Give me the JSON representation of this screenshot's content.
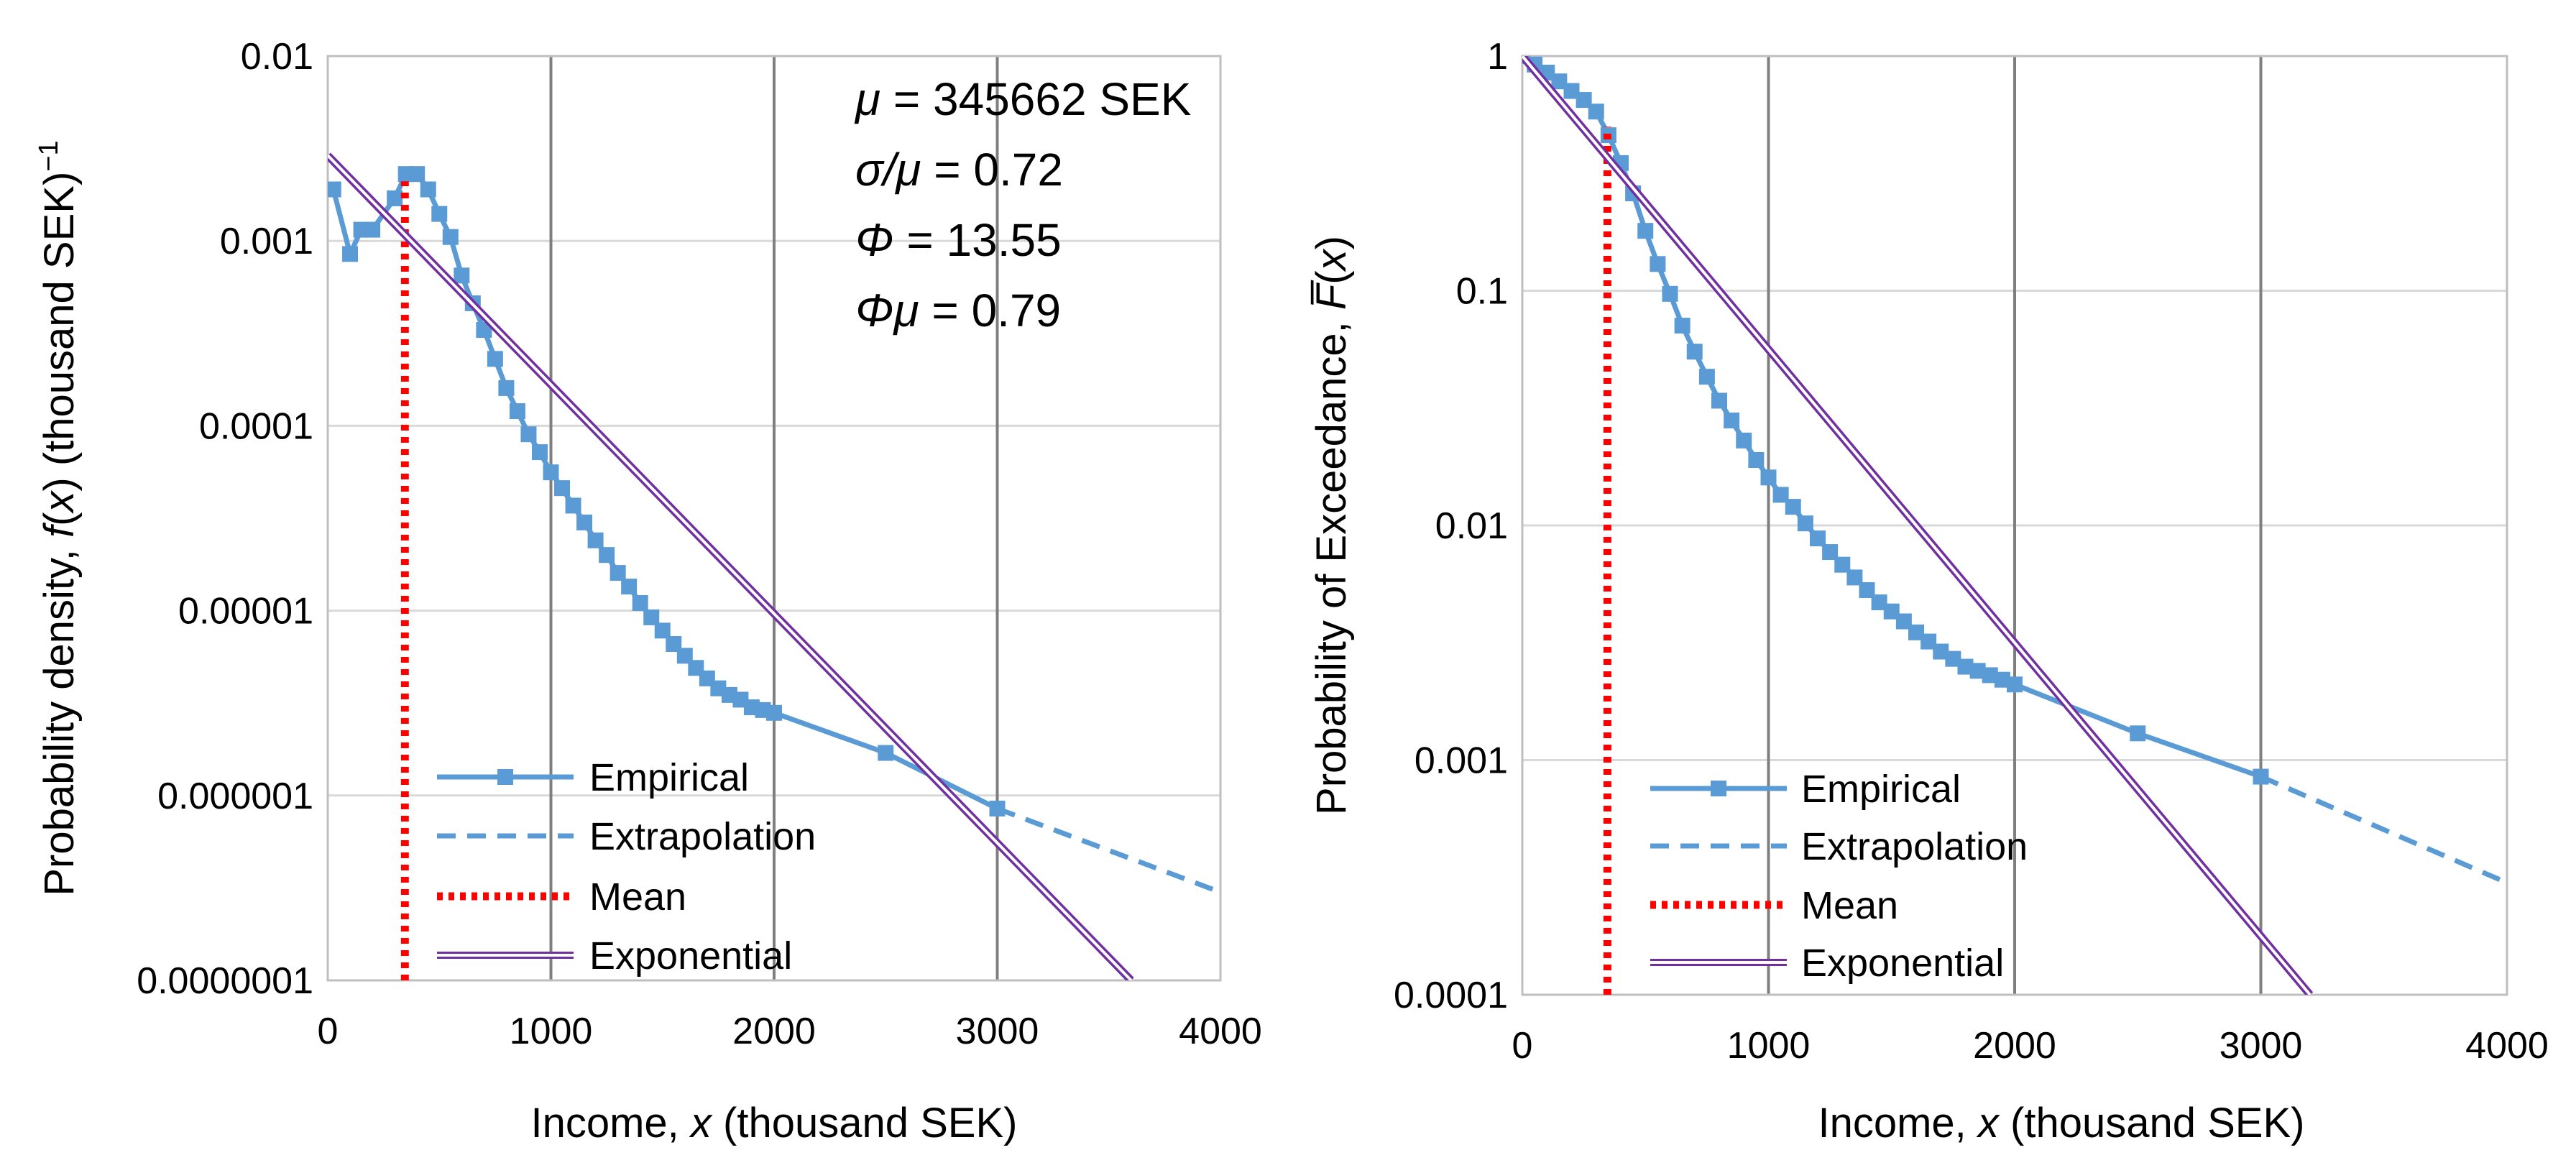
{
  "colors": {
    "empirical": "#5b9bd5",
    "mean": "#ff0000",
    "exponential": "#7030a0",
    "grid_major": "#7f7f7f",
    "grid_minor": "#d9d9d9",
    "axis": "#bfbfbf"
  },
  "chart_data": [
    {
      "id": "density",
      "type": "line",
      "yscale": "log",
      "xlim": [
        0,
        4000
      ],
      "ylim": [
        1e-07,
        0.01
      ],
      "x_ticks": [
        0,
        1000,
        2000,
        3000,
        4000
      ],
      "x_tick_labels": [
        "0",
        "1000",
        "2000",
        "3000",
        "4000"
      ],
      "y_ticks": [
        0.01,
        0.001,
        0.0001,
        1e-05,
        1e-06,
        1e-07
      ],
      "y_tick_labels": [
        "0.01",
        "0.001",
        "0.0001",
        "0.00001",
        "0.000001",
        "0.0000001"
      ],
      "xlabel": {
        "prefix": "Income, ",
        "var": "x",
        "suffix": " (thousand SEK)"
      },
      "ylabel": {
        "prefix": "Probability density, ",
        "func": "f",
        "open": "(",
        "var": "x",
        "close": ")",
        "suffix": " (thousand SEK)",
        "sup": "−1"
      },
      "annotations": [
        {
          "sym": "μ",
          "text": " = 345662 SEK"
        },
        {
          "sym": "σ/μ",
          "text": " = 0.72"
        },
        {
          "sym": "Φ",
          "text": " = 13.55"
        },
        {
          "sym": "Φμ",
          "text": " = 0.79"
        }
      ],
      "legend": [
        "Empirical",
        "Extrapolation",
        "Mean",
        "Exponential"
      ],
      "legend_position": "bottom-left",
      "series": [
        {
          "name": "Empirical",
          "style": "solid-square-markers",
          "x": [
            25,
            100,
            150,
            200,
            300,
            350,
            400,
            450,
            500,
            550,
            600,
            650,
            700,
            750,
            800,
            850,
            900,
            950,
            1000,
            1050,
            1100,
            1150,
            1200,
            1250,
            1300,
            1350,
            1400,
            1450,
            1500,
            1550,
            1600,
            1650,
            1700,
            1750,
            1800,
            1850,
            1900,
            1950,
            2000,
            2500,
            3000
          ],
          "y": [
            0.0019,
            0.00085,
            0.00115,
            0.00115,
            0.0017,
            0.0023,
            0.0023,
            0.0019,
            0.0014,
            0.00105,
            0.00065,
            0.00046,
            0.00033,
            0.00023,
            0.00016,
            0.00012,
            9e-05,
            7.2e-05,
            5.6e-05,
            4.6e-05,
            3.7e-05,
            3e-05,
            2.4e-05,
            2e-05,
            1.6e-05,
            1.35e-05,
            1.1e-05,
            9.2e-06,
            7.8e-06,
            6.6e-06,
            5.7e-06,
            4.9e-06,
            4.3e-06,
            3.8e-06,
            3.5e-06,
            3.3e-06,
            3e-06,
            2.9e-06,
            2.8e-06,
            1.7e-06,
            8.5e-07
          ]
        },
        {
          "name": "Extrapolation",
          "style": "dashed",
          "x": [
            3000,
            4000
          ],
          "y": [
            8.5e-07,
            3e-07
          ]
        },
        {
          "name": "Mean",
          "style": "dotted-vertical",
          "x": [
            345.662,
            345.662
          ],
          "y": [
            1e-07,
            0.0021
          ]
        },
        {
          "name": "Exponential",
          "style": "double-line",
          "x": [
            0,
            3600
          ],
          "y": [
            0.0029,
            1e-07
          ]
        }
      ]
    },
    {
      "id": "exceedance",
      "type": "line",
      "yscale": "log",
      "xlim": [
        0,
        4000
      ],
      "ylim": [
        0.0001,
        1
      ],
      "x_ticks": [
        0,
        1000,
        2000,
        3000,
        4000
      ],
      "x_tick_labels": [
        "0",
        "1000",
        "2000",
        "3000",
        "4000"
      ],
      "y_ticks": [
        1,
        0.1,
        0.01,
        0.001,
        0.0001
      ],
      "y_tick_labels": [
        "1",
        "0.1",
        "0.01",
        "0.001",
        "0.0001"
      ],
      "xlabel": {
        "prefix": "Income, ",
        "var": "x",
        "suffix": " (thousand SEK)"
      },
      "ylabel": {
        "prefix": "Probability of Exceedance, ",
        "func": "F̅",
        "open": "(",
        "var": "x",
        "close": ")",
        "suffix": "",
        "sup": ""
      },
      "annotations": [],
      "legend": [
        "Empirical",
        "Extrapolation",
        "Mean",
        "Exponential"
      ],
      "legend_position": "bottom-left",
      "series": [
        {
          "name": "Empirical",
          "style": "solid-square-markers",
          "x": [
            0,
            50,
            100,
            150,
            200,
            250,
            300,
            350,
            400,
            450,
            500,
            550,
            600,
            650,
            700,
            750,
            800,
            850,
            900,
            950,
            1000,
            1050,
            1100,
            1150,
            1200,
            1250,
            1300,
            1350,
            1400,
            1450,
            1500,
            1550,
            1600,
            1650,
            1700,
            1750,
            1800,
            1850,
            1900,
            1950,
            2000,
            2500,
            3000
          ],
          "y": [
            1,
            0.92,
            0.85,
            0.78,
            0.71,
            0.65,
            0.58,
            0.46,
            0.35,
            0.26,
            0.18,
            0.13,
            0.097,
            0.071,
            0.055,
            0.043,
            0.034,
            0.028,
            0.023,
            0.019,
            0.016,
            0.0135,
            0.012,
            0.0102,
            0.0088,
            0.0077,
            0.0068,
            0.006,
            0.0053,
            0.0047,
            0.0043,
            0.0039,
            0.0035,
            0.0032,
            0.0029,
            0.0027,
            0.0025,
            0.0024,
            0.0023,
            0.0022,
            0.0021,
            0.0013,
            0.00085
          ]
        },
        {
          "name": "Extrapolation",
          "style": "dashed",
          "x": [
            3000,
            4000
          ],
          "y": [
            0.00085,
            0.0003
          ]
        },
        {
          "name": "Mean",
          "style": "dotted-vertical",
          "x": [
            345.662,
            345.662
          ],
          "y": [
            0.0001,
            0.5
          ]
        },
        {
          "name": "Exponential",
          "style": "double-line",
          "x": [
            0,
            3200
          ],
          "y": [
            1,
            0.0001
          ]
        }
      ]
    }
  ]
}
